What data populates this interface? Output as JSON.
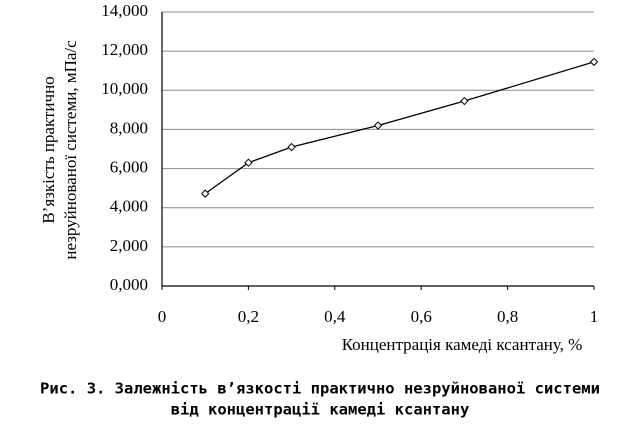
{
  "chart_data": {
    "type": "line",
    "y_label_lines": [
      "В’язкість практично",
      "незруйнованої системи, мПа/с"
    ],
    "x_label": "Концентрація камеді ксантану, %",
    "caption_lines": [
      "Рис. 3. Залежність в’язкості практично незруйнованої системи",
      "від концентрації камеді ксантану"
    ],
    "x": [
      0.1,
      0.2,
      0.3,
      0.5,
      0.7,
      1
    ],
    "series": [
      {
        "name": "В’язкість",
        "color": "#000000",
        "values": [
          4.72,
          6.3,
          7.1,
          8.2,
          9.45,
          11.45
        ]
      }
    ],
    "xlim": [
      0,
      1
    ],
    "xticks": [
      0,
      {
        "value": 0.2,
        "label": "0,2"
      },
      {
        "value": 0.4,
        "label": "0,4"
      },
      {
        "value": 0.6,
        "label": "0,6"
      },
      {
        "value": 0.8,
        "label": "0,8"
      },
      1
    ],
    "ylim": [
      0,
      14
    ],
    "yticks": [
      {
        "value": 0,
        "label": "0,000"
      },
      {
        "value": 2,
        "label": "2,000"
      },
      {
        "value": 4,
        "label": "4,000"
      },
      {
        "value": 6,
        "label": "6,000"
      },
      {
        "value": 8,
        "label": "8,000"
      },
      {
        "value": 10,
        "label": "10,000"
      },
      {
        "value": 12,
        "label": "12,000"
      },
      {
        "value": 14,
        "label": "14,000"
      }
    ],
    "grid": true
  }
}
